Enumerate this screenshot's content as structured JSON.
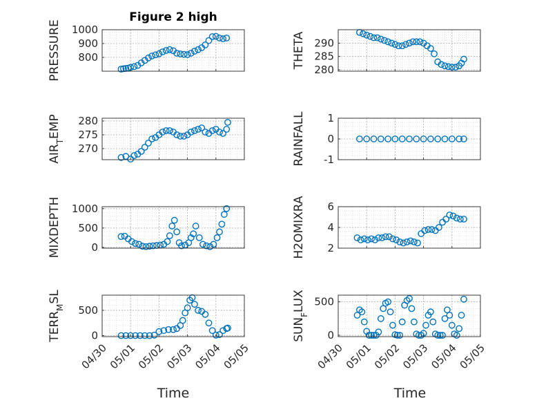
{
  "figure": {
    "title": "Figure 2 high",
    "xlabel": "Time",
    "marker_color": "#0072BD",
    "axis_color": "#262626",
    "grid": true,
    "minor_grid": true,
    "date_ticks": [
      "04/30",
      "05/01",
      "05/02",
      "05/03",
      "05/04",
      "05/05"
    ]
  },
  "chart_data": [
    {
      "type": "scatter",
      "ylabel": "PRESSURE",
      "xlim": [
        "04/30",
        "05/05"
      ],
      "ylim": [
        700,
        1000
      ],
      "yticks": [
        800,
        900,
        1000
      ],
      "x": [
        "04/30 16:00",
        "04/30 18:00",
        "04/30 20:00",
        "04/30 22:00",
        "05/01 00:00",
        "05/01 03:00",
        "05/01 06:00",
        "05/01 09:00",
        "05/01 12:00",
        "05/01 15:00",
        "05/01 18:00",
        "05/01 21:00",
        "05/02 00:00",
        "05/02 03:00",
        "05/02 06:00",
        "05/02 09:00",
        "05/02 12:00",
        "05/02 15:00",
        "05/02 18:00",
        "05/02 21:00",
        "05/03 00:00",
        "05/03 03:00",
        "05/03 06:00",
        "05/03 09:00",
        "05/03 12:00",
        "05/03 15:00",
        "05/03 18:00",
        "05/03 21:00",
        "05/04 00:00",
        "05/04 03:00",
        "05/04 06:00",
        "05/04 09:00"
      ],
      "y": [
        715,
        718,
        720,
        722,
        728,
        733,
        742,
        760,
        778,
        796,
        810,
        818,
        826,
        840,
        850,
        856,
        848,
        830,
        825,
        822,
        820,
        830,
        845,
        856,
        870,
        890,
        922,
        950,
        952,
        940,
        935,
        940
      ]
    },
    {
      "type": "scatter",
      "ylabel": "THETA",
      "xlim": [
        "04/30",
        "05/05"
      ],
      "ylim": [
        279.5,
        295
      ],
      "yticks": [
        280,
        285,
        290
      ],
      "x": [
        "04/30 18:00",
        "04/30 21:00",
        "05/01 00:00",
        "05/01 03:00",
        "05/01 06:00",
        "05/01 09:00",
        "05/01 12:00",
        "05/01 15:00",
        "05/01 18:00",
        "05/01 21:00",
        "05/02 00:00",
        "05/02 03:00",
        "05/02 06:00",
        "05/02 09:00",
        "05/02 12:00",
        "05/02 15:00",
        "05/02 18:00",
        "05/02 21:00",
        "05/03 00:00",
        "05/03 03:00",
        "05/03 06:00",
        "05/03 09:00",
        "05/03 12:00",
        "05/03 15:00",
        "05/03 18:00",
        "05/03 21:00",
        "05/04 00:00",
        "05/04 03:00",
        "05/04 06:00",
        "05/04 08:00",
        "05/04 10:00"
      ],
      "y": [
        294,
        293.5,
        293,
        292.5,
        292,
        292,
        291.5,
        291,
        290.5,
        290,
        289.5,
        289,
        289,
        289.5,
        290,
        290.5,
        290.5,
        290.5,
        290,
        289,
        288,
        286,
        283,
        282,
        281.5,
        281.2,
        281,
        281,
        281.5,
        282.5,
        284
      ]
    },
    {
      "type": "scatter",
      "ylabel": "AIR_TEMP",
      "xlim": [
        "04/30",
        "05/05"
      ],
      "ylim": [
        266,
        281
      ],
      "yticks": [
        270,
        275,
        280
      ],
      "x": [
        "04/30 16:00",
        "04/30 20:00",
        "05/01 00:00",
        "05/01 03:00",
        "05/01 06:00",
        "05/01 09:00",
        "05/01 12:00",
        "05/01 15:00",
        "05/01 18:00",
        "05/01 21:00",
        "05/02 00:00",
        "05/02 03:00",
        "05/02 06:00",
        "05/02 09:00",
        "05/02 12:00",
        "05/02 15:00",
        "05/02 18:00",
        "05/02 21:00",
        "05/03 00:00",
        "05/03 03:00",
        "05/03 06:00",
        "05/03 09:00",
        "05/03 12:00",
        "05/03 15:00",
        "05/03 18:00",
        "05/03 21:00",
        "05/04 00:00",
        "05/04 03:00",
        "05/04 06:00",
        "05/04 09:00",
        "05/04 10:00"
      ],
      "y": [
        266.8,
        267.2,
        266.2,
        267.5,
        268,
        269,
        270.5,
        272,
        273.5,
        274,
        275,
        276,
        276.5,
        276.5,
        276,
        275,
        274.5,
        274.5,
        275,
        276,
        276.5,
        277,
        277.5,
        276,
        275.5,
        276.5,
        277,
        276,
        275.5,
        277,
        279.5
      ]
    },
    {
      "type": "scatter",
      "ylabel": "RAINFALL",
      "xlim": [
        "04/30",
        "05/05"
      ],
      "ylim": [
        -1,
        1
      ],
      "yticks": [
        -1,
        0,
        1
      ],
      "x": [
        "04/30 18:00",
        "05/01 00:00",
        "05/01 06:00",
        "05/01 12:00",
        "05/01 18:00",
        "05/02 00:00",
        "05/02 06:00",
        "05/02 12:00",
        "05/02 18:00",
        "05/03 00:00",
        "05/03 06:00",
        "05/03 12:00",
        "05/03 18:00",
        "05/04 00:00",
        "05/04 06:00",
        "05/04 10:00"
      ],
      "y": [
        0,
        0,
        0,
        0,
        0,
        0,
        0,
        0,
        0,
        0,
        0,
        0,
        0,
        0,
        0,
        0
      ]
    },
    {
      "type": "scatter",
      "ylabel": "MIXDEPTH",
      "xlim": [
        "04/30",
        "05/05"
      ],
      "ylim": [
        -20,
        1050
      ],
      "yticks": [
        0,
        500,
        1000
      ],
      "x": [
        "04/30 16:00",
        "04/30 19:00",
        "04/30 22:00",
        "05/01 01:00",
        "05/01 04:00",
        "05/01 07:00",
        "05/01 10:00",
        "05/01 13:00",
        "05/01 16:00",
        "05/01 19:00",
        "05/01 22:00",
        "05/02 01:00",
        "05/02 04:00",
        "05/02 07:00",
        "05/02 09:00",
        "05/02 11:00",
        "05/02 13:00",
        "05/02 15:00",
        "05/02 17:00",
        "05/02 19:00",
        "05/02 22:00",
        "05/03 01:00",
        "05/03 03:00",
        "05/03 05:00",
        "05/03 07:00",
        "05/03 10:00",
        "05/03 13:00",
        "05/03 16:00",
        "05/03 19:00",
        "05/03 22:00",
        "05/04 01:00",
        "05/04 03:00",
        "05/04 05:00",
        "05/04 07:00",
        "05/04 09:00"
      ],
      "y": [
        280,
        290,
        220,
        150,
        100,
        80,
        30,
        20,
        30,
        40,
        50,
        60,
        80,
        150,
        300,
        550,
        700,
        400,
        120,
        40,
        60,
        120,
        250,
        350,
        550,
        250,
        80,
        40,
        20,
        80,
        250,
        400,
        600,
        850,
        1000
      ]
    },
    {
      "type": "scatter",
      "ylabel": "H2OMIXRA",
      "xlim": [
        "04/30",
        "05/05"
      ],
      "ylim": [
        2,
        6
      ],
      "yticks": [
        2,
        4,
        6
      ],
      "x": [
        "04/30 16:00",
        "04/30 19:00",
        "04/30 22:00",
        "05/01 01:00",
        "05/01 04:00",
        "05/01 07:00",
        "05/01 10:00",
        "05/01 13:00",
        "05/01 16:00",
        "05/01 19:00",
        "05/01 22:00",
        "05/02 01:00",
        "05/02 04:00",
        "05/02 07:00",
        "05/02 10:00",
        "05/02 13:00",
        "05/02 16:00",
        "05/02 19:00",
        "05/02 22:00",
        "05/03 01:00",
        "05/03 04:00",
        "05/03 07:00",
        "05/03 10:00",
        "05/03 13:00",
        "05/03 16:00",
        "05/03 19:00",
        "05/03 22:00",
        "05/04 01:00",
        "05/04 04:00",
        "05/04 07:00",
        "05/04 10:00"
      ],
      "y": [
        3.0,
        2.8,
        2.9,
        2.8,
        2.9,
        2.8,
        3.0,
        3.0,
        3.1,
        3.1,
        2.9,
        2.8,
        2.6,
        2.5,
        2.6,
        2.7,
        2.6,
        2.5,
        3.4,
        3.7,
        3.8,
        3.8,
        3.7,
        4.0,
        4.5,
        4.8,
        5.2,
        5.1,
        4.9,
        4.8,
        4.8
      ]
    },
    {
      "type": "scatter",
      "ylabel": "TERR_MSL",
      "xlim": [
        "04/30",
        "05/05"
      ],
      "ylim": [
        -20,
        800
      ],
      "yticks": [
        0,
        500
      ],
      "x": [
        "04/30 16:00",
        "04/30 20:00",
        "05/01 00:00",
        "05/01 04:00",
        "05/01 08:00",
        "05/01 12:00",
        "05/01 16:00",
        "05/01 20:00",
        "05/02 00:00",
        "05/02 04:00",
        "05/02 08:00",
        "05/02 12:00",
        "05/02 15:00",
        "05/02 18:00",
        "05/02 20:00",
        "05/02 22:00",
        "05/03 00:00",
        "05/03 02:00",
        "05/03 04:00",
        "05/03 06:00",
        "05/03 09:00",
        "05/03 12:00",
        "05/03 15:00",
        "05/03 18:00",
        "05/03 21:00",
        "05/04 00:00",
        "05/04 03:00",
        "05/04 06:00",
        "05/04 09:00",
        "05/04 10:00"
      ],
      "y": [
        0,
        0,
        0,
        0,
        0,
        0,
        0,
        10,
        80,
        100,
        120,
        120,
        140,
        200,
        300,
        450,
        550,
        700,
        750,
        620,
        500,
        480,
        420,
        250,
        100,
        10,
        20,
        100,
        140,
        150
      ]
    },
    {
      "type": "scatter",
      "ylabel": "SUN_FLUX",
      "xlim": [
        "04/30",
        "05/05"
      ],
      "ylim": [
        -20,
        600
      ],
      "yticks": [
        0,
        500
      ],
      "x": [
        "04/30 16:00",
        "04/30 18:00",
        "04/30 20:00",
        "04/30 22:00",
        "05/01 00:00",
        "05/01 02:00",
        "05/01 04:00",
        "05/01 06:00",
        "05/01 08:00",
        "05/01 10:00",
        "05/01 12:00",
        "05/01 14:00",
        "05/01 16:00",
        "05/01 18:00",
        "05/01 20:00",
        "05/01 22:00",
        "05/02 00:00",
        "05/02 02:00",
        "05/02 04:00",
        "05/02 06:00",
        "05/02 08:00",
        "05/02 10:00",
        "05/02 12:00",
        "05/02 14:00",
        "05/02 16:00",
        "05/02 18:00",
        "05/02 20:00",
        "05/02 22:00",
        "05/03 00:00",
        "05/03 02:00",
        "05/03 04:00",
        "05/03 06:00",
        "05/03 08:00",
        "05/03 10:00",
        "05/03 12:00",
        "05/03 14:00",
        "05/03 16:00",
        "05/03 18:00",
        "05/03 20:00",
        "05/03 22:00",
        "05/04 00:00",
        "05/04 02:00",
        "05/04 04:00",
        "05/04 06:00",
        "05/04 08:00",
        "05/04 10:00"
      ],
      "y": [
        300,
        380,
        350,
        200,
        60,
        0,
        0,
        0,
        0,
        50,
        250,
        400,
        480,
        500,
        350,
        150,
        10,
        0,
        0,
        200,
        450,
        520,
        550,
        400,
        200,
        20,
        0,
        0,
        30,
        150,
        300,
        350,
        200,
        20,
        0,
        0,
        0,
        250,
        380,
        300,
        150,
        20,
        0,
        100,
        300,
        540
      ]
    }
  ]
}
